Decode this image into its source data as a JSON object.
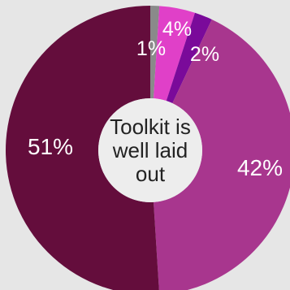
{
  "chart_data": {
    "type": "pie",
    "variant": "donut",
    "center_label": [
      "Toolkit is",
      "well laid",
      "out"
    ],
    "slices": [
      {
        "value": 1,
        "label": "1%",
        "color": "#8a8a8a",
        "label_color": "#ffffff"
      },
      {
        "value": 4,
        "label": "4%",
        "color": "#e040c8",
        "label_color": "#ffffff"
      },
      {
        "value": 2,
        "label": "2%",
        "color": "#7a0a9a",
        "label_color": "#ffffff"
      },
      {
        "value": 42,
        "label": "42%",
        "color": "#a8368e",
        "label_color": "#ffffff"
      },
      {
        "value": 51,
        "label": "51%",
        "color": "#640d3c",
        "label_color": "#ffffff"
      }
    ],
    "start_angle_deg": 0,
    "direction": "clockwise",
    "legend": "none"
  }
}
